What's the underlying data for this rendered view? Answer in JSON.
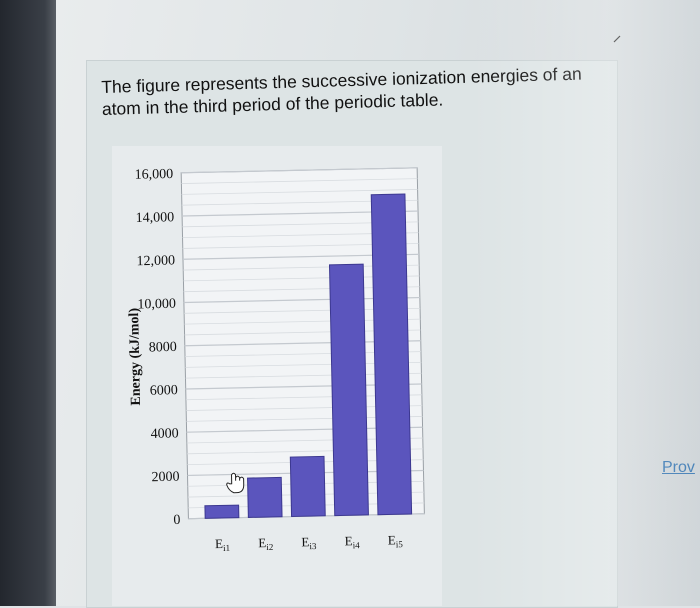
{
  "question": {
    "line1": "The figure represents the successive ionization energies of an",
    "line2": "atom in the third period of the periodic table."
  },
  "link": {
    "label": "Prov"
  },
  "colors": {
    "bar": "#5b55bd",
    "bar_edge": "#3c3890",
    "plot_bg": "#f2f4f6",
    "grid": "#c4c9cf"
  },
  "chart_data": {
    "type": "bar",
    "categories": [
      "E",
      "E",
      "E",
      "E",
      "E"
    ],
    "category_subscripts": [
      "i1",
      "i2",
      "i3",
      "i4",
      "i5"
    ],
    "values": [
      580,
      1820,
      2750,
      11600,
      14800
    ],
    "ylabel": "Energy (kJ/mol)",
    "ylim": [
      0,
      16000
    ],
    "yticks": [
      0,
      2000,
      4000,
      6000,
      8000,
      10000,
      12000,
      14000,
      16000
    ],
    "ytick_labels": [
      "0",
      "2000",
      "4000",
      "6000",
      "8000",
      "10,000",
      "12,000",
      "14,000",
      "16,000"
    ],
    "grid": true,
    "minor_grid": true,
    "legend": "none"
  }
}
